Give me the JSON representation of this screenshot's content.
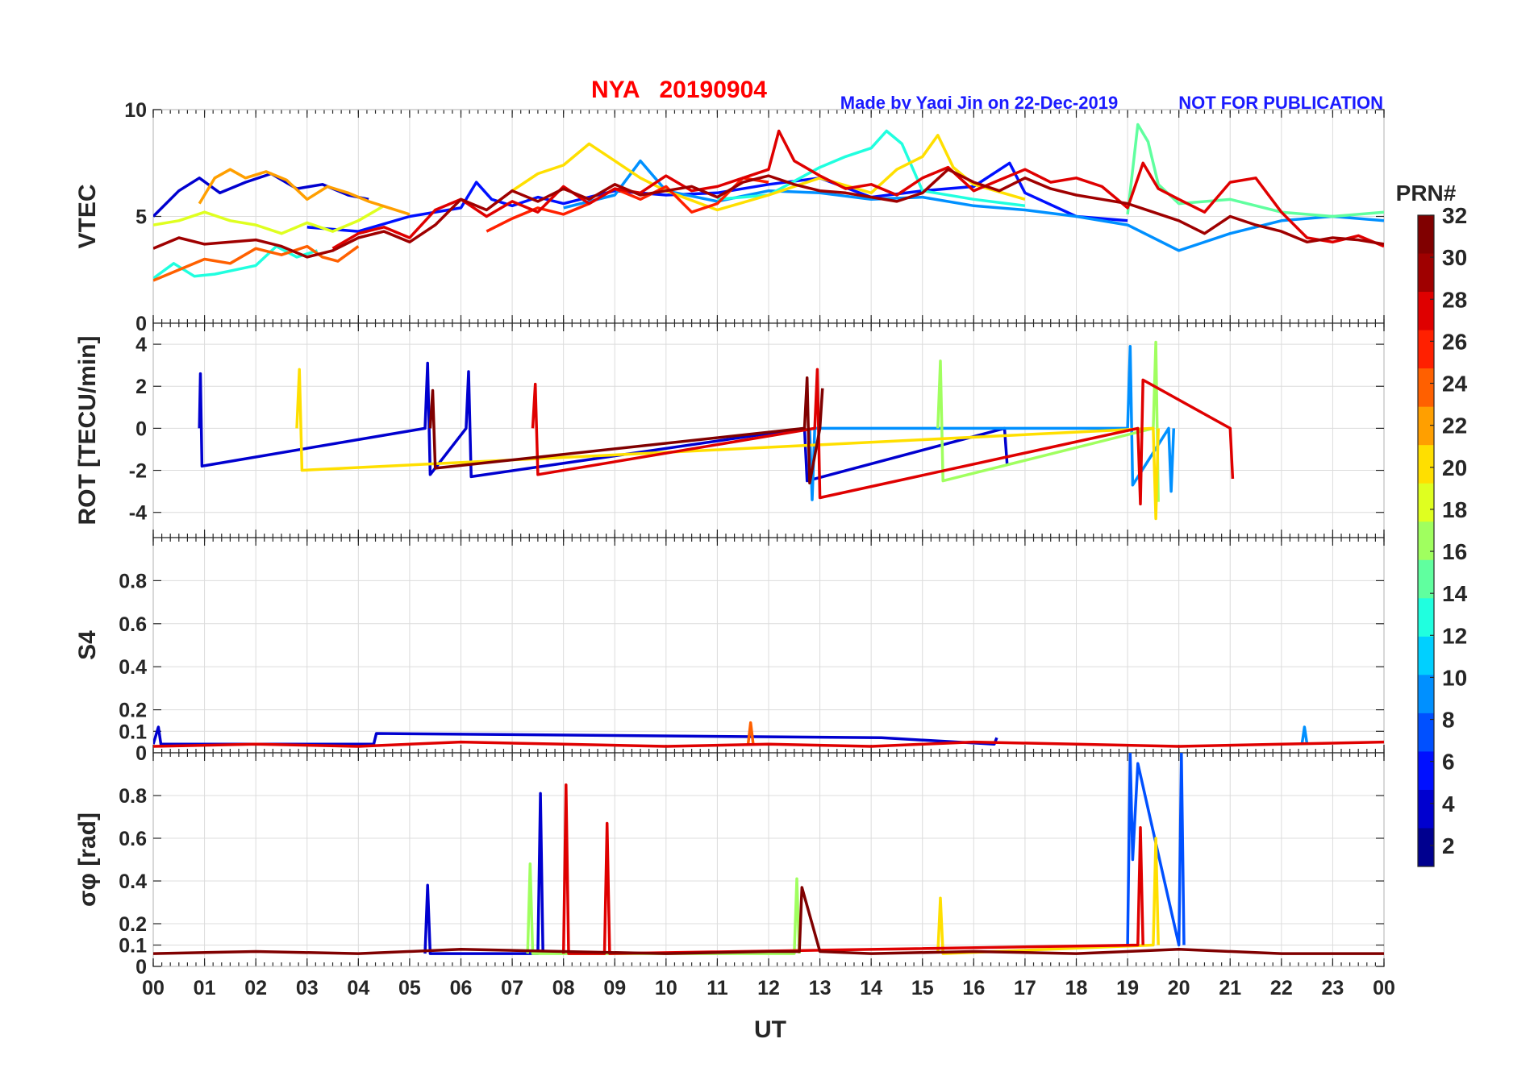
{
  "chart_data": {
    "type": "line",
    "title": "NYA   20190904",
    "credit": "Made by Yaqi Jin on 22-Dec-2019",
    "notice": "NOT FOR PUBLICATION",
    "xlabel": "UT",
    "xlim": [
      0,
      24
    ],
    "xticks": [
      "00",
      "01",
      "02",
      "03",
      "04",
      "05",
      "06",
      "07",
      "08",
      "09",
      "10",
      "11",
      "12",
      "13",
      "14",
      "15",
      "16",
      "17",
      "18",
      "19",
      "20",
      "21",
      "22",
      "23",
      "00"
    ],
    "colorbar": {
      "title": "PRN#",
      "range": [
        1,
        32
      ],
      "ticks": [
        "2",
        "4",
        "6",
        "8",
        "10",
        "12",
        "14",
        "16",
        "18",
        "20",
        "22",
        "24",
        "26",
        "28",
        "30",
        "32"
      ],
      "colors": [
        "#00008f",
        "#0000cf",
        "#0010ff",
        "#0050ff",
        "#0090ff",
        "#00d0ff",
        "#20ffdf",
        "#60ff9f",
        "#a0ff5f",
        "#dfff20",
        "#ffdf00",
        "#ff9f00",
        "#ff6000",
        "#ff2000",
        "#df0000",
        "#9f0000",
        "#800000"
      ]
    },
    "panels": [
      {
        "ylabel": "VTEC",
        "ylim": [
          0,
          10
        ],
        "yticks": [
          "0",
          "5",
          "10"
        ],
        "series": [
          {
            "prn": 2,
            "x": [
              0,
              0.5,
              0.9,
              1.3,
              1.8,
              2.3,
              2.8,
              3.3,
              3.8,
              4.2
            ],
            "y": [
              5.0,
              6.2,
              6.8,
              6.1,
              6.6,
              7.0,
              6.3,
              6.5,
              6.0,
              5.8
            ]
          },
          {
            "prn": 5,
            "x": [
              3.0,
              4.0,
              5.0,
              6.0,
              6.3,
              6.6,
              7.0,
              7.5,
              8.0,
              9.0,
              10.0,
              11.0,
              12.0,
              13.0,
              14.0,
              15.0,
              16.0,
              16.7,
              17.0,
              18.0,
              19.0
            ],
            "y": [
              4.5,
              4.3,
              5.0,
              5.4,
              6.6,
              5.8,
              5.5,
              5.9,
              5.6,
              6.2,
              6.0,
              6.1,
              6.5,
              6.8,
              5.9,
              6.2,
              6.4,
              7.5,
              6.1,
              5.0,
              4.8
            ]
          },
          {
            "prn": 9,
            "x": [
              8.0,
              9.0,
              9.5,
              10.0,
              11.0,
              12.0,
              13.0,
              14.0,
              15.0,
              16.0,
              17.0,
              18.0,
              19.0,
              20.0,
              21.0,
              22.0,
              23.0,
              24.0
            ],
            "y": [
              5.4,
              6.0,
              7.6,
              6.2,
              5.7,
              6.2,
              6.1,
              5.8,
              5.9,
              5.5,
              5.3,
              5.0,
              4.6,
              3.4,
              4.2,
              4.8,
              5.0,
              4.8
            ]
          },
          {
            "prn": 12,
            "x": [
              0,
              0.4,
              0.8,
              1.2,
              1.6,
              2.0,
              2.4,
              2.8,
              3.2
            ],
            "y": [
              2.1,
              2.8,
              2.2,
              2.3,
              2.5,
              2.7,
              3.6,
              3.1,
              3.4
            ]
          },
          {
            "prn": 13,
            "x": [
              11.0,
              12.0,
              13.0,
              13.5,
              14.0,
              14.3,
              14.6,
              15.0,
              16.0,
              17.0
            ],
            "y": [
              5.8,
              6.0,
              7.3,
              7.8,
              8.2,
              9.0,
              8.4,
              6.2,
              5.8,
              5.5
            ]
          },
          {
            "prn": 15,
            "x": [
              19.0,
              19.2,
              19.4,
              19.6,
              20.0,
              21.0,
              22.0,
              23.0,
              24.0
            ],
            "y": [
              5.1,
              9.3,
              8.5,
              6.5,
              5.6,
              5.8,
              5.2,
              5.0,
              5.2
            ]
          },
          {
            "prn": 18,
            "x": [
              0,
              0.5,
              1.0,
              1.5,
              2.0,
              2.5,
              3.0,
              3.5,
              4.0,
              4.5
            ],
            "y": [
              4.6,
              4.8,
              5.2,
              4.8,
              4.6,
              4.2,
              4.7,
              4.3,
              4.8,
              5.5
            ]
          },
          {
            "prn": 20,
            "x": [
              7.0,
              7.5,
              8.0,
              8.5,
              9.0,
              9.5,
              10.0,
              11.0,
              12.0,
              13.0,
              14.0,
              14.5,
              15.0,
              15.3,
              15.6,
              16.0,
              17.0
            ],
            "y": [
              6.2,
              7.0,
              7.4,
              8.4,
              7.6,
              6.8,
              6.2,
              5.3,
              6.0,
              6.8,
              6.1,
              7.2,
              7.8,
              8.8,
              7.3,
              6.5,
              5.8
            ]
          },
          {
            "prn": 22,
            "x": [
              0.9,
              1.2,
              1.5,
              1.8,
              2.2,
              2.6,
              3.0,
              3.4,
              3.8,
              4.2,
              4.6,
              5.0
            ],
            "y": [
              5.6,
              6.8,
              7.2,
              6.8,
              7.1,
              6.7,
              5.8,
              6.4,
              6.1,
              5.7,
              5.4,
              5.1
            ]
          },
          {
            "prn": 24,
            "x": [
              0,
              0.5,
              1.0,
              1.5,
              2.0,
              2.5,
              3.0,
              3.3,
              3.6,
              4.0
            ],
            "y": [
              2.0,
              2.5,
              3.0,
              2.8,
              3.5,
              3.2,
              3.6,
              3.1,
              2.9,
              3.6
            ]
          },
          {
            "prn": 26,
            "x": [
              6.5,
              7.0,
              7.5,
              8.0,
              8.5,
              9.0,
              9.5,
              10.0,
              10.5,
              11.0,
              11.5,
              12.0
            ],
            "y": [
              4.3,
              4.9,
              5.4,
              5.1,
              5.6,
              6.3,
              5.8,
              6.4,
              5.2,
              5.6,
              6.8,
              6.6
            ]
          },
          {
            "prn": 28,
            "x": [
              3.5,
              4.0,
              4.5,
              5.0,
              5.5,
              6.0,
              6.5,
              7.0,
              7.5,
              8.0,
              8.5,
              9.0,
              9.5,
              10.0,
              10.5,
              11.0,
              11.5,
              12.0,
              12.2,
              12.5,
              13.0,
              13.5,
              14.0,
              14.5,
              15.0,
              15.5,
              16.0,
              16.5,
              17.0,
              17.5,
              18.0,
              18.5,
              19.0,
              19.3,
              19.6,
              20.0,
              20.5,
              21.0,
              21.5,
              22.0,
              22.5,
              23.0,
              23.5,
              24.0
            ],
            "y": [
              3.5,
              4.2,
              4.5,
              4.0,
              5.3,
              5.8,
              5.0,
              5.7,
              5.2,
              6.4,
              5.6,
              6.3,
              6.1,
              6.9,
              6.2,
              6.4,
              6.8,
              7.2,
              9.0,
              7.6,
              6.9,
              6.3,
              6.5,
              6.0,
              6.8,
              7.3,
              6.2,
              6.7,
              7.2,
              6.6,
              6.8,
              6.4,
              5.4,
              7.5,
              6.3,
              5.8,
              5.2,
              6.6,
              6.8,
              5.2,
              4.0,
              3.8,
              4.1,
              3.6
            ]
          },
          {
            "prn": 31,
            "x": [
              0,
              0.5,
              1.0,
              1.5,
              2.0,
              2.5,
              3.0,
              3.5,
              4.0,
              4.5,
              5.0,
              5.5,
              6.0,
              6.5,
              7.0,
              7.5,
              8.0,
              8.5,
              9.0,
              9.5,
              10.0,
              10.5,
              11.0,
              11.5,
              12.0,
              12.5,
              13.0,
              13.5,
              14.0,
              14.5,
              15.0,
              15.5,
              16.0,
              16.5,
              17.0,
              17.5,
              18.0,
              18.5,
              19.0,
              19.5,
              20.0,
              20.5,
              21.0,
              21.5,
              22.0,
              22.5,
              23.0,
              23.5,
              24.0
            ],
            "y": [
              3.5,
              4.0,
              3.7,
              3.8,
              3.9,
              3.6,
              3.1,
              3.4,
              4.0,
              4.3,
              3.8,
              4.6,
              5.8,
              5.3,
              6.2,
              5.7,
              6.3,
              5.8,
              6.5,
              6.0,
              6.2,
              6.4,
              5.9,
              6.6,
              6.9,
              6.5,
              6.2,
              6.1,
              5.9,
              5.7,
              6.1,
              7.2,
              6.6,
              6.2,
              6.8,
              6.3,
              6.0,
              5.8,
              5.6,
              5.2,
              4.8,
              4.2,
              5.0,
              4.6,
              4.3,
              3.8,
              4.0,
              3.9,
              3.7
            ]
          }
        ]
      },
      {
        "ylabel": "ROT [TECU/min]",
        "ylim": [
          -5.2,
          5.0
        ],
        "yticks": [
          "-4",
          "-2",
          "0",
          "2",
          "4"
        ],
        "series": [
          {
            "prn": 2,
            "x": [
              0.9,
              0.92,
              0.95,
              5.3,
              5.35,
              5.4,
              6.1,
              6.15,
              6.2,
              12.7,
              12.75,
              16.6,
              16.65
            ],
            "y": [
              0,
              2.6,
              -1.8,
              0,
              3.1,
              -2.2,
              0,
              2.7,
              -2.3,
              0,
              -2.5,
              0,
              -1.7
            ]
          },
          {
            "prn": 9,
            "x": [
              12.8,
              12.85,
              12.9,
              19.0,
              19.05,
              19.1,
              19.8,
              19.85,
              19.9
            ],
            "y": [
              0,
              -3.4,
              0,
              0,
              3.9,
              -2.7,
              0,
              -3.0,
              0
            ]
          },
          {
            "prn": 16,
            "x": [
              15.3,
              15.35,
              15.4,
              19.5,
              19.55,
              19.6
            ],
            "y": [
              0,
              3.2,
              -2.5,
              0,
              4.1,
              -3.5
            ]
          },
          {
            "prn": 20,
            "x": [
              2.8,
              2.85,
              2.9,
              19.5,
              19.55,
              19.6
            ],
            "y": [
              0,
              2.8,
              -2.0,
              0,
              -4.3,
              0
            ]
          },
          {
            "prn": 28,
            "x": [
              7.4,
              7.45,
              7.5,
              12.9,
              12.95,
              13.0,
              19.2,
              19.25,
              19.3,
              21.0,
              21.05
            ],
            "y": [
              0,
              2.1,
              -2.2,
              0,
              2.8,
              -3.3,
              0,
              -3.6,
              2.3,
              0,
              -2.4
            ]
          },
          {
            "prn": 32,
            "x": [
              5.4,
              5.45,
              5.5,
              12.7,
              12.75,
              12.8,
              13.0,
              13.05
            ],
            "y": [
              0,
              1.8,
              -1.9,
              0,
              2.4,
              -2.6,
              0,
              1.9
            ]
          }
        ]
      },
      {
        "ylabel": "S4",
        "ylim": [
          0,
          1.0
        ],
        "yticks": [
          "0",
          "0.1",
          "0.2",
          "0.4",
          "0.6",
          "0.8"
        ],
        "series": [
          {
            "prn": 2,
            "x": [
              0,
              0.1,
              0.15,
              4.3,
              4.35,
              14.2,
              16.4,
              16.45
            ],
            "y": [
              0.04,
              0.12,
              0.04,
              0.04,
              0.09,
              0.07,
              0.04,
              0.07
            ]
          },
          {
            "prn": 9,
            "x": [
              22.4,
              22.45,
              22.5
            ],
            "y": [
              0.04,
              0.12,
              0.04
            ]
          },
          {
            "prn": 24,
            "x": [
              11.6,
              11.65,
              11.7
            ],
            "y": [
              0.04,
              0.14,
              0.04
            ]
          },
          {
            "prn": 28,
            "x": [
              0,
              2.0,
              4.0,
              6.0,
              8.0,
              10.0,
              12.0,
              14.0,
              16.0,
              18.0,
              20.0,
              22.0,
              24.0
            ],
            "y": [
              0.03,
              0.04,
              0.03,
              0.05,
              0.04,
              0.03,
              0.04,
              0.03,
              0.05,
              0.04,
              0.03,
              0.04,
              0.05
            ]
          }
        ]
      },
      {
        "ylabel": "σφ [rad]",
        "ylim": [
          0,
          1.0
        ],
        "yticks": [
          "0",
          "0.1",
          "0.2",
          "0.4",
          "0.6",
          "0.8"
        ],
        "series": [
          {
            "prn": 2,
            "x": [
              5.3,
              5.35,
              5.4,
              7.5,
              7.55,
              7.6
            ],
            "y": [
              0.06,
              0.38,
              0.06,
              0.06,
              0.81,
              0.06
            ]
          },
          {
            "prn": 7,
            "x": [
              19.0,
              19.05,
              19.1,
              19.2,
              20.0,
              20.05,
              20.1
            ],
            "y": [
              0.1,
              1.0,
              0.5,
              0.95,
              0.1,
              1.0,
              0.1
            ]
          },
          {
            "prn": 16,
            "x": [
              7.3,
              7.35,
              7.4,
              12.5,
              12.55,
              12.6
            ],
            "y": [
              0.06,
              0.48,
              0.06,
              0.06,
              0.41,
              0.06
            ]
          },
          {
            "prn": 21,
            "x": [
              15.3,
              15.35,
              15.4,
              19.5,
              19.55,
              19.6
            ],
            "y": [
              0.06,
              0.32,
              0.06,
              0.1,
              0.6,
              0.1
            ]
          },
          {
            "prn": 28,
            "x": [
              8.0,
              8.05,
              8.1,
              8.8,
              8.85,
              8.9,
              19.2,
              19.25,
              19.3
            ],
            "y": [
              0.06,
              0.85,
              0.06,
              0.06,
              0.67,
              0.06,
              0.1,
              0.65,
              0.1
            ]
          },
          {
            "prn": 32,
            "x": [
              0,
              2.0,
              4.0,
              6.0,
              8.0,
              10.0,
              12.0,
              12.6,
              12.65,
              13.0,
              14.0,
              16.0,
              18.0,
              20.0,
              22.0,
              24.0
            ],
            "y": [
              0.06,
              0.07,
              0.06,
              0.08,
              0.07,
              0.06,
              0.07,
              0.07,
              0.37,
              0.07,
              0.06,
              0.07,
              0.06,
              0.08,
              0.06,
              0.06
            ]
          }
        ]
      }
    ]
  }
}
